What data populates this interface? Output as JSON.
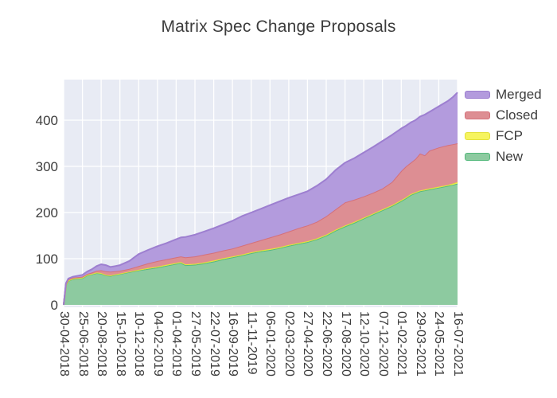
{
  "chart": {
    "title": "Matrix Spec Change Proposals",
    "colors": {
      "figure_bg": "#ffffff",
      "plot_bg": "#e8ebf4",
      "grid": "#ffffff",
      "text": "#3c3c3c"
    },
    "legend": [
      {
        "name": "Merged",
        "fill": "#b39bdd",
        "line": "#9d7fd0"
      },
      {
        "name": "Closed",
        "fill": "#dd8e93",
        "line": "#d5707a"
      },
      {
        "name": "FCP",
        "fill": "#f6f45f",
        "line": "#e3e13a"
      },
      {
        "name": "New",
        "fill": "#8dcaa0",
        "line": "#55b97d"
      }
    ]
  },
  "chart_data": {
    "type": "area",
    "stacked": true,
    "title": "Matrix Spec Change Proposals",
    "stack_order_bottom_to_top": [
      "New",
      "FCP",
      "Closed",
      "Merged"
    ],
    "legend_position": "right",
    "legend_order": [
      "Merged",
      "Closed",
      "FCP",
      "New"
    ],
    "grid": true,
    "x_tick_labels": [
      "30-04-2018",
      "25-06-2018",
      "20-08-2018",
      "15-10-2018",
      "10-12-2018",
      "04-02-2019",
      "01-04-2019",
      "27-05-2019",
      "22-07-2019",
      "16-09-2019",
      "11-11-2019",
      "06-01-2020",
      "02-03-2020",
      "27-04-2020",
      "22-06-2020",
      "17-08-2020",
      "12-10-2020",
      "07-12-2020",
      "01-02-2021",
      "29-03-2021",
      "24-05-2021",
      "16-07-2021"
    ],
    "x_tick_weeks": [
      0,
      8,
      16,
      24,
      32,
      40,
      48,
      56,
      64,
      72,
      80,
      88,
      96,
      104,
      112,
      120,
      128,
      136,
      144,
      152,
      160,
      168
    ],
    "y_ticks": [
      0,
      100,
      200,
      300,
      400
    ],
    "y_range": [
      0,
      488
    ],
    "samples": {
      "weeks": [
        0,
        1,
        2,
        4,
        8,
        10,
        12,
        14,
        16,
        18,
        20,
        22,
        24,
        28,
        32,
        36,
        40,
        44,
        48,
        50,
        52,
        56,
        60,
        64,
        68,
        72,
        76,
        80,
        84,
        88,
        92,
        96,
        100,
        104,
        108,
        112,
        116,
        120,
        124,
        128,
        132,
        136,
        140,
        144,
        146,
        148,
        150,
        152,
        154,
        156,
        160,
        164,
        166,
        168
      ],
      "series": {
        "New": [
          0,
          42,
          52,
          56,
          58,
          64,
          66,
          69,
          68,
          64,
          63,
          65,
          67,
          71,
          75,
          78,
          81,
          85,
          89,
          91,
          86,
          87,
          90,
          94,
          99,
          103,
          107,
          112,
          116,
          119,
          123,
          128,
          132,
          136,
          142,
          150,
          161,
          170,
          178,
          187,
          196,
          205,
          214,
          225,
          231,
          238,
          242,
          246,
          248,
          250,
          254,
          258,
          260,
          263
        ],
        "FCP": [
          0,
          1,
          1,
          1,
          1,
          1,
          1,
          1,
          1,
          1,
          1,
          1,
          1,
          1,
          1,
          2,
          2,
          2,
          2,
          2,
          2,
          2,
          2,
          2,
          2,
          2,
          2,
          2,
          2,
          2,
          2,
          2,
          2,
          2,
          2,
          2,
          2,
          2,
          2,
          2,
          2,
          2,
          2,
          2,
          2,
          2,
          2,
          2,
          2,
          2,
          2,
          2,
          3,
          3
        ],
        "Closed": [
          0,
          2,
          2,
          2,
          2,
          2,
          3,
          4,
          6,
          8,
          8,
          7,
          6,
          6,
          8,
          10,
          12,
          12,
          12,
          12,
          15,
          16,
          17,
          17,
          17,
          17,
          19,
          20,
          22,
          25,
          27,
          29,
          32,
          34,
          36,
          40,
          44,
          50,
          48,
          46,
          45,
          45,
          50,
          63,
          67,
          68,
          72,
          80,
          74,
          82,
          85,
          86,
          85,
          84
        ],
        "Merged": [
          0,
          2,
          2,
          2,
          4,
          5,
          7,
          10,
          13,
          13,
          10,
          11,
          12,
          17,
          26,
          29,
          32,
          35,
          39,
          41,
          44,
          47,
          50,
          53,
          56,
          60,
          64,
          66,
          68,
          70,
          72,
          73,
          73,
          74,
          78,
          80,
          85,
          86,
          90,
          95,
          99,
          103,
          102,
          92,
          88,
          87,
          84,
          80,
          88,
          84,
          89,
          96,
          102,
          110
        ]
      }
    }
  }
}
